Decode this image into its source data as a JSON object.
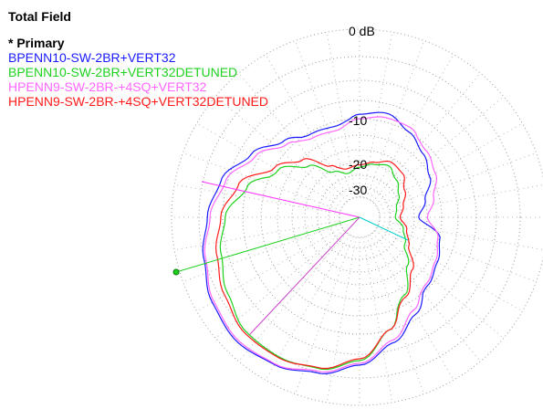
{
  "title": "Total Field",
  "primary_label": "* Primary",
  "legend": [
    {
      "name": "BPENN10-SW-2BR+VERT32",
      "color": "#1a1aff"
    },
    {
      "name": "BPENN10-SW-2BR+VERT32DETUNED",
      "color": "#1fd11f"
    },
    {
      "name": "HPENN9-SW-2BR-+4SQ+VERT32",
      "color": "#ff66ff"
    },
    {
      "name": "HPENN9-SW-2BR-+4SQ+VERT32DETUNED",
      "color": "#ff1a1a"
    }
  ],
  "chart_data": {
    "type": "polar",
    "title": "Total Field",
    "radial_unit": "dB",
    "ring_labels": [
      "0 dB",
      "-10",
      "-20",
      "-30"
    ],
    "grid": true,
    "series": [
      {
        "name": "BPENN10-SW-2BR+VERT32",
        "color": "#1a1aff",
        "azimuth_deg": [
          0,
          15,
          30,
          45,
          60,
          75,
          90,
          105,
          120,
          135,
          150,
          165,
          180,
          195,
          210,
          225,
          240,
          255,
          270,
          285,
          300,
          315,
          330,
          345,
          360
        ],
        "gain_db": [
          -19,
          -17,
          -14,
          -12,
          -10,
          -9,
          -9.5,
          -11,
          -10.5,
          -9,
          -7,
          -5,
          -4,
          -3,
          -2,
          -1.5,
          -2,
          -3,
          -4.5,
          -6.5,
          -8.5,
          -10.5,
          -12,
          -13.5,
          -19
        ]
      },
      {
        "name": "BPENN10-SW-2BR+VERT32DETUNED",
        "color": "#1fd11f",
        "azimuth_deg": [
          0,
          15,
          30,
          45,
          60,
          75,
          90,
          105,
          120,
          135,
          150,
          165,
          180,
          195,
          210,
          225,
          240,
          255,
          270,
          285,
          300,
          315,
          330,
          345,
          360
        ],
        "gain_db": [
          -28,
          -27,
          -24,
          -21,
          -19,
          -20,
          -22,
          -24,
          -21,
          -16,
          -11,
          -8,
          -6,
          -5,
          -4,
          -3,
          -3,
          -3.5,
          -5,
          -8,
          -12,
          -17,
          -21,
          -24,
          -28
        ]
      },
      {
        "name": "HPENN9-SW-2BR-+4SQ+VERT32",
        "color": "#ff66ff",
        "azimuth_deg": [
          0,
          15,
          30,
          45,
          60,
          75,
          90,
          105,
          120,
          135,
          150,
          165,
          180,
          195,
          210,
          225,
          240,
          255,
          270,
          285,
          300,
          315,
          330,
          345,
          360
        ],
        "gain_db": [
          -17,
          -15,
          -12.5,
          -11,
          -9.5,
          -9.5,
          -10,
          -12,
          -11.5,
          -9.5,
          -7.5,
          -5.5,
          -4.3,
          -3.2,
          -2.2,
          -1.7,
          -2.1,
          -3.2,
          -4.7,
          -6.8,
          -9,
          -11,
          -12.5,
          -14,
          -17
        ]
      },
      {
        "name": "HPENN9-SW-2BR-+4SQ+VERT32DETUNED",
        "color": "#ff1a1a",
        "azimuth_deg": [
          0,
          15,
          30,
          45,
          60,
          75,
          90,
          105,
          120,
          135,
          150,
          165,
          180,
          195,
          210,
          225,
          240,
          255,
          270,
          285,
          300,
          315,
          330,
          345,
          360
        ],
        "gain_db": [
          -26,
          -24,
          -21,
          -18.5,
          -18,
          -19.5,
          -21,
          -22,
          -19,
          -14,
          -10,
          -7,
          -5.5,
          -4.5,
          -3.6,
          -2.8,
          -2.9,
          -3.6,
          -5.2,
          -8,
          -11.5,
          -15.5,
          -19.5,
          -22.5,
          -26
        ]
      }
    ]
  }
}
